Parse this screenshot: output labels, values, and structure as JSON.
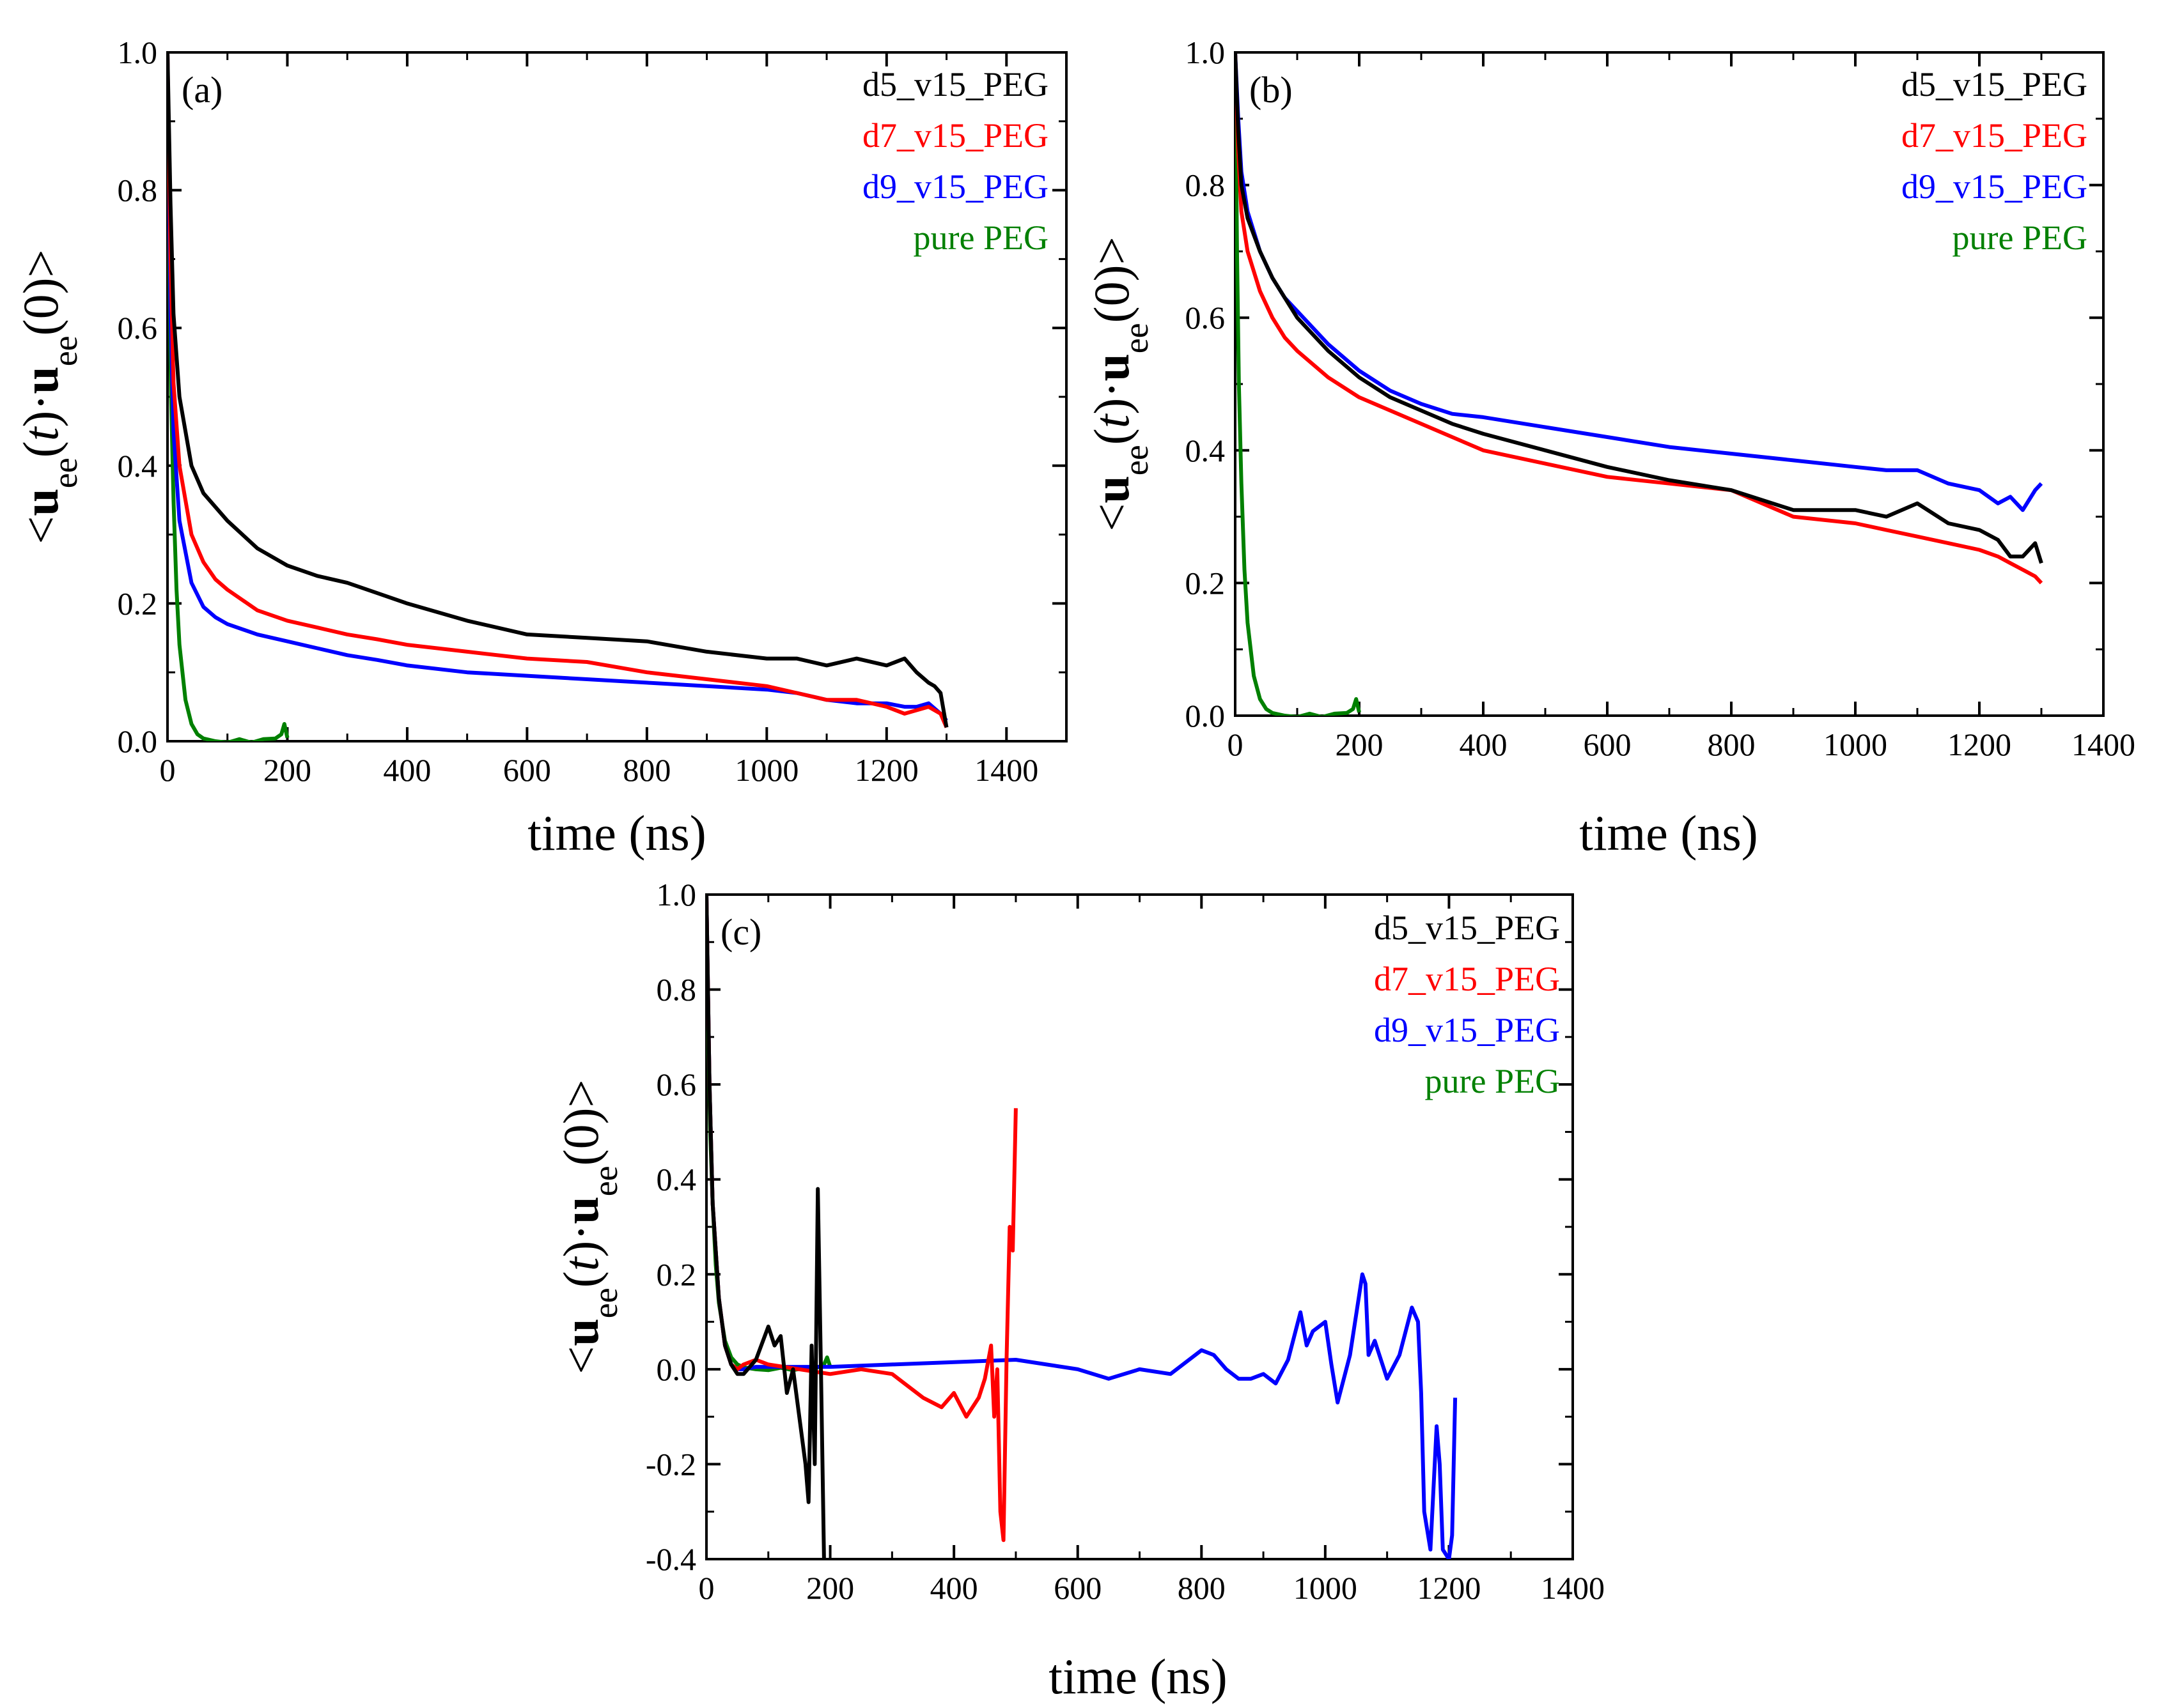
{
  "colors": {
    "d5_v15_PEG": "#000000",
    "d7_v15_PEG": "#ff0000",
    "d9_v15_PEG": "#0000ff",
    "pure_PEG": "#008000"
  },
  "chart_data": [
    {
      "type": "line",
      "panel_label": "(a)",
      "xlabel": "time (ns)",
      "ylabel_parts": [
        "<",
        "u",
        "ee",
        "(",
        "t",
        ")·",
        "u",
        "ee",
        "(0)>"
      ],
      "xlim": [
        0,
        1500
      ],
      "ylim": [
        0.0,
        1.0
      ],
      "xticks": [
        "0",
        "200",
        "400",
        "600",
        "800",
        "1000",
        "1200",
        "1400"
      ],
      "xtick_values": [
        0,
        200,
        400,
        600,
        800,
        1000,
        1200,
        1400
      ],
      "yticks": [
        "0.0",
        "0.2",
        "0.4",
        "0.6",
        "0.8",
        "1.0"
      ],
      "ytick_values": [
        0.0,
        0.2,
        0.4,
        0.6,
        0.8,
        1.0
      ],
      "legend": [
        "d5_v15_PEG",
        "d7_v15_PEG",
        "d9_v15_PEG",
        "pure PEG"
      ],
      "legend_position": "top-right",
      "series": [
        {
          "name": "d5_v15_PEG",
          "color": "#000000",
          "x": [
            0,
            5,
            10,
            20,
            40,
            60,
            80,
            100,
            150,
            200,
            250,
            300,
            350,
            400,
            500,
            600,
            700,
            800,
            900,
            1000,
            1050,
            1100,
            1150,
            1200,
            1230,
            1250,
            1270,
            1280,
            1290,
            1300
          ],
          "y": [
            1.0,
            0.78,
            0.62,
            0.5,
            0.4,
            0.36,
            0.34,
            0.32,
            0.28,
            0.255,
            0.24,
            0.23,
            0.215,
            0.2,
            0.175,
            0.155,
            0.15,
            0.145,
            0.13,
            0.12,
            0.12,
            0.11,
            0.12,
            0.11,
            0.12,
            0.1,
            0.085,
            0.08,
            0.07,
            0.02
          ]
        },
        {
          "name": "d7_v15_PEG",
          "color": "#ff0000",
          "x": [
            0,
            5,
            10,
            20,
            40,
            60,
            80,
            100,
            150,
            200,
            250,
            300,
            350,
            400,
            500,
            600,
            700,
            800,
            900,
            1000,
            1050,
            1100,
            1150,
            1200,
            1230,
            1250,
            1270,
            1290,
            1300
          ],
          "y": [
            1.0,
            0.7,
            0.52,
            0.4,
            0.3,
            0.26,
            0.235,
            0.22,
            0.19,
            0.175,
            0.165,
            0.155,
            0.148,
            0.14,
            0.13,
            0.12,
            0.115,
            0.1,
            0.09,
            0.08,
            0.07,
            0.06,
            0.06,
            0.05,
            0.04,
            0.045,
            0.05,
            0.04,
            0.02
          ]
        },
        {
          "name": "d9_v15_PEG",
          "color": "#0000ff",
          "x": [
            0,
            5,
            10,
            20,
            40,
            60,
            80,
            100,
            150,
            200,
            250,
            300,
            350,
            400,
            500,
            600,
            700,
            800,
            900,
            1000,
            1050,
            1100,
            1150,
            1200,
            1230,
            1250,
            1270,
            1290,
            1300
          ],
          "y": [
            1.0,
            0.62,
            0.45,
            0.32,
            0.23,
            0.195,
            0.18,
            0.17,
            0.155,
            0.145,
            0.135,
            0.125,
            0.118,
            0.11,
            0.1,
            0.095,
            0.09,
            0.085,
            0.08,
            0.075,
            0.07,
            0.06,
            0.055,
            0.055,
            0.05,
            0.05,
            0.055,
            0.04,
            0.03
          ]
        },
        {
          "name": "pure PEG",
          "color": "#008000",
          "x": [
            0,
            3,
            6,
            10,
            15,
            20,
            30,
            40,
            50,
            60,
            80,
            100,
            120,
            140,
            160,
            180,
            190,
            195,
            200
          ],
          "y": [
            1.0,
            0.7,
            0.5,
            0.35,
            0.22,
            0.14,
            0.06,
            0.025,
            0.01,
            0.004,
            0.0,
            -0.002,
            0.003,
            -0.002,
            0.003,
            0.004,
            0.01,
            0.025,
            0.005
          ]
        }
      ]
    },
    {
      "type": "line",
      "panel_label": "(b)",
      "xlabel": "time (ns)",
      "ylabel_parts": [
        "<",
        "u",
        "ee",
        "(",
        "t",
        ")·",
        "u",
        "ee",
        "(0)>"
      ],
      "xlim": [
        0,
        1400
      ],
      "ylim": [
        0.0,
        1.0
      ],
      "xticks": [
        "0",
        "200",
        "400",
        "600",
        "800",
        "1000",
        "1200",
        "1400"
      ],
      "xtick_values": [
        0,
        200,
        400,
        600,
        800,
        1000,
        1200,
        1400
      ],
      "yticks": [
        "0.0",
        "0.2",
        "0.4",
        "0.6",
        "0.8",
        "1.0"
      ],
      "ytick_values": [
        0.0,
        0.2,
        0.4,
        0.6,
        0.8,
        1.0
      ],
      "legend": [
        "d5_v15_PEG",
        "d7_v15_PEG",
        "d9_v15_PEG",
        "pure PEG"
      ],
      "legend_position": "top-right",
      "series": [
        {
          "name": "d5_v15_PEG",
          "color": "#000000",
          "x": [
            0,
            5,
            10,
            20,
            40,
            60,
            80,
            100,
            150,
            200,
            250,
            300,
            350,
            400,
            500,
            600,
            700,
            800,
            900,
            1000,
            1050,
            1100,
            1150,
            1200,
            1230,
            1250,
            1270,
            1290,
            1300
          ],
          "y": [
            1.0,
            0.88,
            0.8,
            0.75,
            0.7,
            0.66,
            0.63,
            0.6,
            0.55,
            0.51,
            0.48,
            0.46,
            0.44,
            0.425,
            0.4,
            0.375,
            0.355,
            0.34,
            0.31,
            0.31,
            0.3,
            0.32,
            0.29,
            0.28,
            0.265,
            0.24,
            0.24,
            0.26,
            0.23
          ]
        },
        {
          "name": "d7_v15_PEG",
          "color": "#ff0000",
          "x": [
            0,
            5,
            10,
            20,
            40,
            60,
            80,
            100,
            150,
            200,
            250,
            300,
            350,
            400,
            500,
            600,
            700,
            800,
            900,
            1000,
            1050,
            1100,
            1150,
            1200,
            1230,
            1250,
            1270,
            1290,
            1300
          ],
          "y": [
            1.0,
            0.85,
            0.76,
            0.7,
            0.64,
            0.6,
            0.57,
            0.55,
            0.51,
            0.48,
            0.46,
            0.44,
            0.42,
            0.4,
            0.38,
            0.36,
            0.35,
            0.34,
            0.3,
            0.29,
            0.28,
            0.27,
            0.26,
            0.25,
            0.24,
            0.23,
            0.22,
            0.21,
            0.2
          ]
        },
        {
          "name": "d9_v15_PEG",
          "color": "#0000ff",
          "x": [
            0,
            5,
            10,
            20,
            40,
            60,
            80,
            100,
            150,
            200,
            250,
            300,
            350,
            400,
            500,
            600,
            700,
            800,
            900,
            1000,
            1050,
            1100,
            1150,
            1200,
            1230,
            1250,
            1270,
            1290,
            1300
          ],
          "y": [
            1.0,
            0.9,
            0.82,
            0.76,
            0.7,
            0.66,
            0.63,
            0.61,
            0.56,
            0.52,
            0.49,
            0.47,
            0.455,
            0.45,
            0.435,
            0.42,
            0.405,
            0.395,
            0.385,
            0.375,
            0.37,
            0.37,
            0.35,
            0.34,
            0.32,
            0.33,
            0.31,
            0.34,
            0.35
          ]
        },
        {
          "name": "pure PEG",
          "color": "#008000",
          "x": [
            0,
            3,
            6,
            10,
            15,
            20,
            30,
            40,
            50,
            60,
            80,
            100,
            120,
            140,
            160,
            180,
            190,
            195,
            200
          ],
          "y": [
            1.0,
            0.7,
            0.5,
            0.35,
            0.22,
            0.14,
            0.06,
            0.025,
            0.01,
            0.004,
            0.0,
            -0.002,
            0.003,
            -0.002,
            0.003,
            0.004,
            0.01,
            0.025,
            0.005
          ]
        }
      ]
    },
    {
      "type": "line",
      "panel_label": "(c)",
      "xlabel": "time (ns)",
      "ylabel_parts": [
        "<",
        "u",
        "ee",
        "(",
        "t",
        ")·",
        "u",
        "ee",
        "(0)>"
      ],
      "xlim": [
        0,
        1400
      ],
      "ylim": [
        -0.4,
        1.0
      ],
      "xticks": [
        "0",
        "200",
        "400",
        "600",
        "800",
        "1000",
        "1200",
        "1400"
      ],
      "xtick_values": [
        0,
        200,
        400,
        600,
        800,
        1000,
        1200,
        1400
      ],
      "yticks": [
        "-0.4",
        "-0.2",
        "0.0",
        "0.2",
        "0.4",
        "0.6",
        "0.8",
        "1.0"
      ],
      "ytick_values": [
        -0.4,
        -0.2,
        0.0,
        0.2,
        0.4,
        0.6,
        0.8,
        1.0
      ],
      "legend": [
        "d5_v15_PEG",
        "d7_v15_PEG",
        "d9_v15_PEG",
        "pure PEG"
      ],
      "legend_position": "top-right",
      "series": [
        {
          "name": "d5_v15_PEG",
          "color": "#000000",
          "x": [
            0,
            5,
            10,
            20,
            30,
            40,
            50,
            60,
            80,
            100,
            110,
            120,
            130,
            140,
            150,
            160,
            165,
            170,
            175,
            180,
            185,
            190
          ],
          "y": [
            1.0,
            0.6,
            0.35,
            0.15,
            0.05,
            0.01,
            -0.01,
            -0.01,
            0.02,
            0.09,
            0.05,
            0.07,
            -0.05,
            0.0,
            -0.1,
            -0.2,
            -0.28,
            0.05,
            -0.2,
            0.38,
            0.0,
            -0.4
          ]
        },
        {
          "name": "d7_v15_PEG",
          "color": "#ff0000",
          "x": [
            0,
            5,
            10,
            20,
            30,
            40,
            50,
            60,
            80,
            100,
            150,
            200,
            250,
            300,
            350,
            380,
            400,
            420,
            440,
            450,
            460,
            465,
            470,
            475,
            480,
            485,
            490,
            495,
            500
          ],
          "y": [
            1.0,
            0.6,
            0.35,
            0.15,
            0.05,
            0.01,
            0.0,
            0.01,
            0.02,
            0.01,
            0.0,
            -0.01,
            0.0,
            -0.01,
            -0.06,
            -0.08,
            -0.05,
            -0.1,
            -0.06,
            -0.02,
            0.05,
            -0.1,
            0.0,
            -0.3,
            -0.36,
            0.02,
            0.3,
            0.25,
            0.55
          ]
        },
        {
          "name": "d9_v15_PEG",
          "color": "#0000ff",
          "x": [
            0,
            5,
            10,
            20,
            30,
            40,
            50,
            60,
            80,
            100,
            150,
            200,
            300,
            400,
            500,
            600,
            650,
            700,
            750,
            800,
            820,
            840,
            860,
            880,
            900,
            920,
            940,
            960,
            970,
            980,
            1000,
            1010,
            1020,
            1040,
            1060,
            1065,
            1070,
            1080,
            1100,
            1120,
            1140,
            1150,
            1155,
            1160,
            1170,
            1180,
            1185,
            1190,
            1200,
            1205,
            1210
          ],
          "y": [
            1.0,
            0.6,
            0.35,
            0.15,
            0.05,
            0.01,
            0.0,
            0.0,
            0.005,
            0.005,
            0.005,
            0.005,
            0.01,
            0.015,
            0.02,
            0.0,
            -0.02,
            0.0,
            -0.01,
            0.04,
            0.03,
            0.0,
            -0.02,
            -0.02,
            -0.01,
            -0.03,
            0.02,
            0.12,
            0.05,
            0.08,
            0.1,
            0.01,
            -0.07,
            0.03,
            0.2,
            0.18,
            0.03,
            0.06,
            -0.02,
            0.03,
            0.13,
            0.1,
            -0.05,
            -0.3,
            -0.38,
            -0.12,
            -0.2,
            -0.38,
            -0.4,
            -0.35,
            -0.06
          ]
        },
        {
          "name": "pure PEG",
          "color": "#008000",
          "x": [
            0,
            3,
            6,
            10,
            15,
            20,
            30,
            40,
            50,
            60,
            80,
            100,
            120,
            140,
            160,
            180,
            190,
            195,
            200
          ],
          "y": [
            1.0,
            0.7,
            0.5,
            0.35,
            0.22,
            0.14,
            0.06,
            0.025,
            0.01,
            0.004,
            0.0,
            -0.002,
            0.003,
            -0.002,
            0.003,
            0.004,
            0.01,
            0.025,
            0.005
          ]
        }
      ]
    }
  ]
}
